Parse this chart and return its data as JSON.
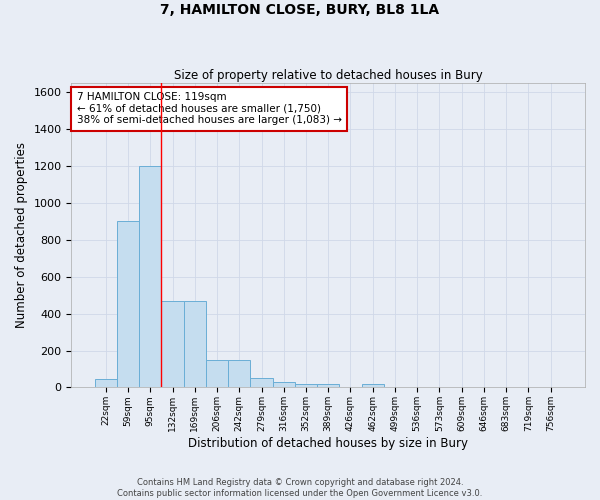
{
  "title": "7, HAMILTON CLOSE, BURY, BL8 1LA",
  "subtitle": "Size of property relative to detached houses in Bury",
  "xlabel": "Distribution of detached houses by size in Bury",
  "ylabel": "Number of detached properties",
  "footer_line1": "Contains HM Land Registry data © Crown copyright and database right 2024.",
  "footer_line2": "Contains public sector information licensed under the Open Government Licence v3.0.",
  "categories": [
    "22sqm",
    "59sqm",
    "95sqm",
    "132sqm",
    "169sqm",
    "206sqm",
    "242sqm",
    "279sqm",
    "316sqm",
    "352sqm",
    "389sqm",
    "426sqm",
    "462sqm",
    "499sqm",
    "536sqm",
    "573sqm",
    "609sqm",
    "646sqm",
    "683sqm",
    "719sqm",
    "756sqm"
  ],
  "values": [
    45,
    900,
    1200,
    470,
    470,
    150,
    150,
    50,
    30,
    20,
    20,
    0,
    20,
    0,
    0,
    0,
    0,
    0,
    0,
    0,
    0
  ],
  "bar_color": "#c5ddef",
  "bar_edge_color": "#6aaed6",
  "grid_color": "#d0d8e8",
  "background_color": "#e8edf5",
  "annotation_text": "7 HAMILTON CLOSE: 119sqm\n← 61% of detached houses are smaller (1,750)\n38% of semi-detached houses are larger (1,083) →",
  "annotation_box_facecolor": "#ffffff",
  "annotation_box_edge_color": "#cc0000",
  "redline_x": 2.5,
  "ylim": [
    0,
    1650
  ],
  "yticks": [
    0,
    200,
    400,
    600,
    800,
    1000,
    1200,
    1400,
    1600
  ]
}
